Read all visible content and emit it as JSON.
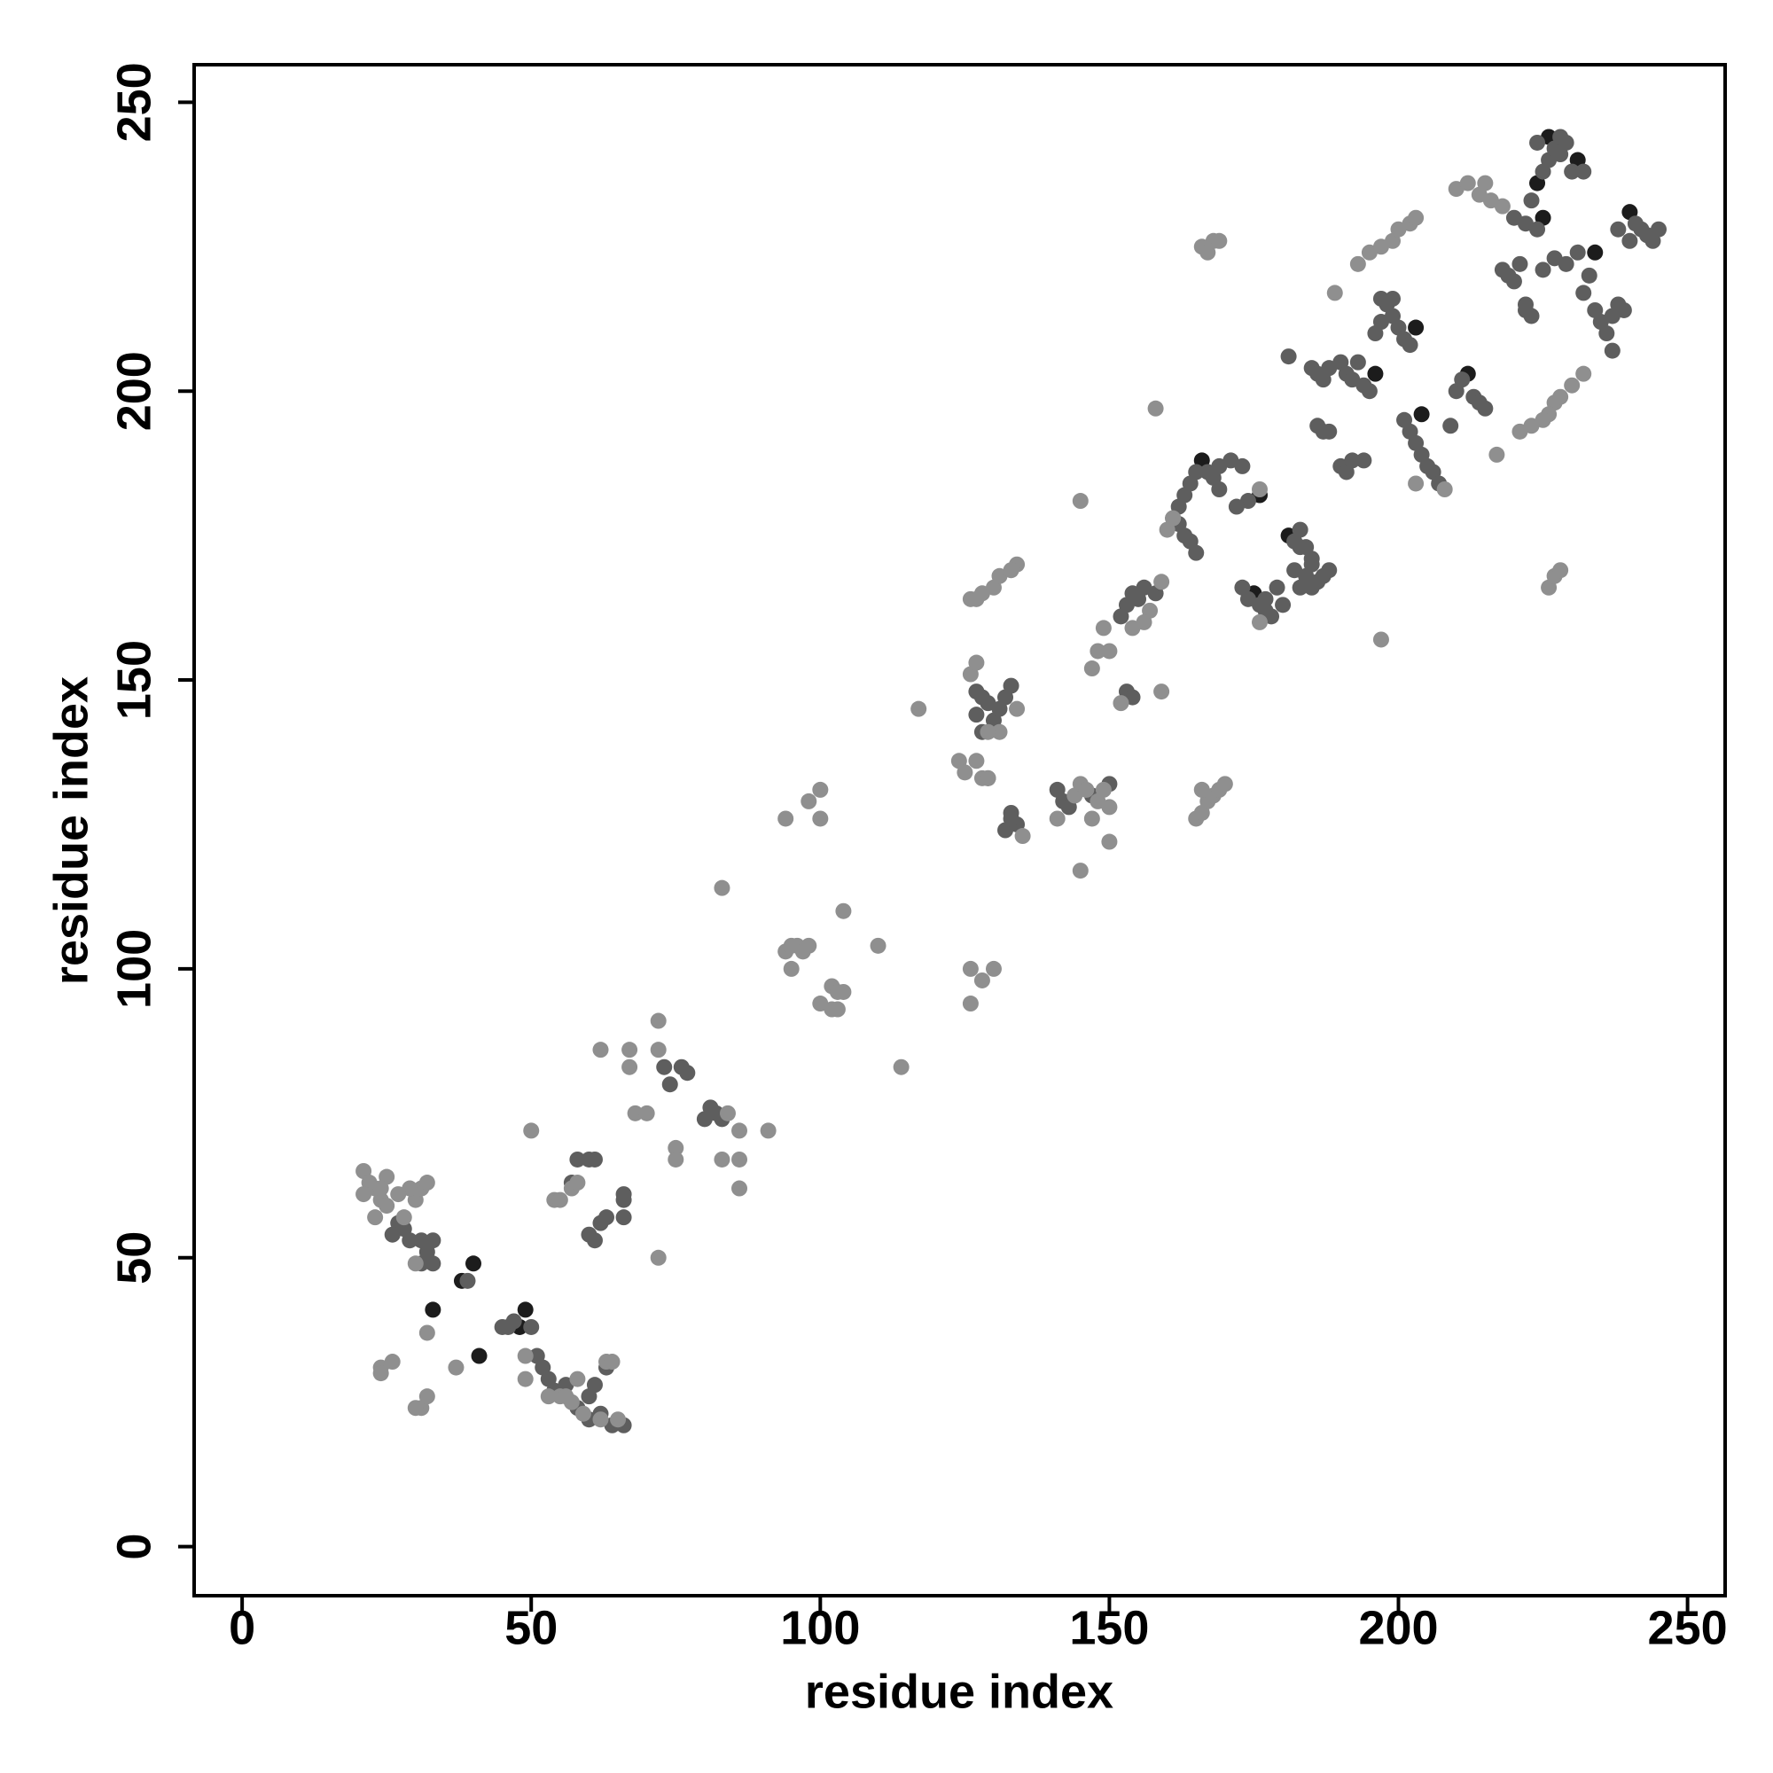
{
  "chart_data": {
    "type": "scatter",
    "xlabel": "residue index",
    "ylabel": "residue index",
    "xlim": [
      -8.3,
      256.5
    ],
    "ylim": [
      -8.5,
      256.5
    ],
    "xticks": [
      0,
      50,
      100,
      150,
      200,
      250
    ],
    "yticks": [
      0,
      50,
      100,
      150,
      200,
      250
    ],
    "marker_radius": 9,
    "series": [
      {
        "color": "#1c1c1c",
        "x": [
          40,
          33,
          41,
          48,
          49,
          38,
          166,
          176,
          175,
          196,
          203,
          204,
          212,
          225,
          224,
          231,
          226,
          234,
          240,
          181
        ],
        "values": [
          49,
          41,
          33,
          38,
          41,
          46,
          188,
          182,
          165,
          203,
          211,
          196,
          203,
          230,
          236,
          240,
          244,
          224,
          231,
          175
        ]
      },
      {
        "color": "#5e5e5e",
        "x": [
          27,
          28,
          26,
          29,
          31,
          33,
          32,
          33,
          31,
          39,
          45,
          46,
          47,
          50,
          51,
          52,
          53,
          54,
          56,
          58,
          60,
          62,
          64,
          61,
          63,
          66,
          60,
          61,
          57,
          58,
          60,
          61,
          60,
          62,
          63,
          66,
          66,
          66,
          73,
          74,
          76,
          77,
          80,
          81,
          82,
          83,
          127,
          128,
          129,
          127,
          128,
          129,
          130,
          131,
          132,
          133,
          132,
          133,
          134,
          133,
          141,
          142,
          143,
          147,
          150,
          152,
          153,
          154,
          155,
          156,
          153,
          154,
          158,
          161,
          162,
          163,
          164,
          165,
          162,
          163,
          164,
          165,
          167,
          168,
          169,
          171,
          173,
          169,
          174,
          172,
          173,
          174,
          176,
          177,
          178,
          177,
          179,
          180,
          182,
          183,
          184,
          185,
          186,
          187,
          188,
          185,
          182,
          183,
          184,
          185,
          183,
          181,
          185,
          186,
          187,
          188,
          190,
          191,
          192,
          193,
          194,
          195,
          186,
          187,
          188,
          190,
          191,
          192,
          194,
          196,
          197,
          198,
          199,
          200,
          201,
          202,
          197,
          199,
          201,
          202,
          203,
          204,
          205,
          206,
          207,
          209,
          210,
          211,
          213,
          214,
          215,
          218,
          219,
          220,
          221,
          222,
          223,
          222,
          220,
          222,
          224,
          223,
          225,
          226,
          227,
          228,
          229,
          230,
          232,
          224,
          228,
          225,
          227,
          229,
          231,
          233,
          232,
          234,
          235,
          236,
          237,
          238,
          239,
          237,
          241,
          242,
          243,
          244,
          245,
          240,
          238
        ],
        "values": [
          56,
          55,
          54,
          53,
          53,
          49,
          51,
          53,
          49,
          46,
          38,
          38,
          39,
          38,
          33,
          31,
          29,
          27,
          28,
          24,
          22,
          23,
          21,
          28,
          31,
          21,
          26,
          67,
          63,
          67,
          67,
          53,
          54,
          56,
          57,
          60,
          61,
          57,
          83,
          80,
          83,
          82,
          74,
          76,
          75,
          74,
          148,
          147,
          146,
          144,
          141,
          133,
          143,
          145,
          147,
          149,
          124,
          127,
          125,
          126,
          131,
          129,
          128,
          130,
          132,
          161,
          163,
          165,
          164,
          166,
          148,
          147,
          165,
          178,
          177,
          175,
          174,
          172,
          180,
          182,
          184,
          186,
          186,
          185,
          187,
          188,
          187,
          183,
          181,
          180,
          166,
          164,
          163,
          162,
          161,
          164,
          166,
          163,
          169,
          166,
          168,
          170,
          167,
          168,
          169,
          166,
          174,
          176,
          173,
          171,
          173,
          206,
          204,
          203,
          202,
          204,
          205,
          203,
          202,
          205,
          201,
          200,
          194,
          193,
          193,
          187,
          186,
          188,
          188,
          210,
          212,
          215,
          213,
          211,
          209,
          208,
          216,
          216,
          195,
          193,
          191,
          189,
          187,
          186,
          184,
          194,
          200,
          202,
          199,
          198,
          197,
          221,
          220,
          219,
          222,
          215,
          213,
          214,
          230,
          229,
          228,
          233,
          238,
          240,
          242,
          241,
          243,
          238,
          238,
          243,
          244,
          221,
          223,
          222,
          224,
          220,
          217,
          214,
          212,
          210,
          213,
          215,
          214,
          207,
          229,
          228,
          227,
          226,
          228,
          226,
          228
        ]
      },
      {
        "color": "#8f8f8f",
        "x": [
          21,
          22,
          23,
          21,
          24,
          25,
          23,
          28,
          30,
          31,
          32,
          29,
          25,
          24,
          27,
          30,
          55,
          57,
          59,
          62,
          63,
          64,
          65,
          58,
          56,
          53,
          49,
          49,
          32,
          31,
          30,
          32,
          24,
          24,
          26,
          37,
          50,
          54,
          55,
          57,
          58,
          62,
          67,
          67,
          68,
          70,
          72,
          72,
          75,
          75,
          72,
          84,
          86,
          86,
          83,
          86,
          91,
          94,
          95,
          96,
          97,
          98,
          95,
          100,
          102,
          102,
          103,
          104,
          103,
          104,
          110,
          114,
          94,
          98,
          100,
          100,
          83,
          117,
          126,
          126,
          128,
          130,
          124,
          125,
          127,
          128,
          129,
          126,
          127,
          131,
          129,
          127,
          134,
          126,
          128,
          130,
          131,
          133,
          134,
          135,
          141,
          144,
          145,
          146,
          148,
          149,
          150,
          147,
          145,
          145,
          150,
          147,
          148,
          150,
          149,
          157,
          159,
          154,
          156,
          152,
          158,
          159,
          165,
          166,
          167,
          168,
          169,
          170,
          166,
          166,
          167,
          168,
          169,
          160,
          161,
          176,
          176,
          189,
          193,
          195,
          197,
          199,
          200,
          202,
          203,
          197,
          203,
          208,
          217,
          210,
          212,
          214,
          216,
          218,
          215,
          227,
          226,
          225,
          223,
          221,
          228,
          230,
          232,
          226,
          227,
          228
        ],
        "values": [
          65,
          63,
          62,
          61,
          60,
          59,
          57,
          57,
          60,
          62,
          63,
          62,
          64,
          62,
          61,
          49,
          26,
          25,
          23,
          22,
          32,
          32,
          22,
          29,
          26,
          26,
          33,
          29,
          37,
          24,
          24,
          26,
          31,
          30,
          32,
          31,
          72,
          60,
          60,
          62,
          63,
          86,
          86,
          83,
          75,
          75,
          86,
          91,
          69,
          67,
          50,
          75,
          72,
          67,
          67,
          62,
          72,
          103,
          104,
          104,
          103,
          104,
          100,
          94,
          93,
          97,
          96,
          96,
          93,
          110,
          104,
          83,
          126,
          129,
          131,
          126,
          114,
          145,
          100,
          94,
          98,
          100,
          136,
          134,
          136,
          133,
          133,
          151,
          153,
          141,
          141,
          164,
          170,
          164,
          165,
          166,
          168,
          169,
          145,
          123,
          126,
          130,
          132,
          131,
          129,
          131,
          128,
          126,
          117,
          181,
          122,
          152,
          155,
          155,
          159,
          162,
          167,
          159,
          160,
          146,
          197,
          148,
          126,
          127,
          129,
          130,
          131,
          132,
          131,
          225,
          224,
          226,
          226,
          176,
          178,
          160,
          183,
          217,
          222,
          224,
          225,
          226,
          228,
          229,
          230,
          157,
          184,
          183,
          189,
          235,
          236,
          234,
          233,
          232,
          236,
          198,
          196,
          195,
          194,
          193,
          199,
          201,
          203,
          166,
          168,
          169
        ]
      }
    ]
  }
}
